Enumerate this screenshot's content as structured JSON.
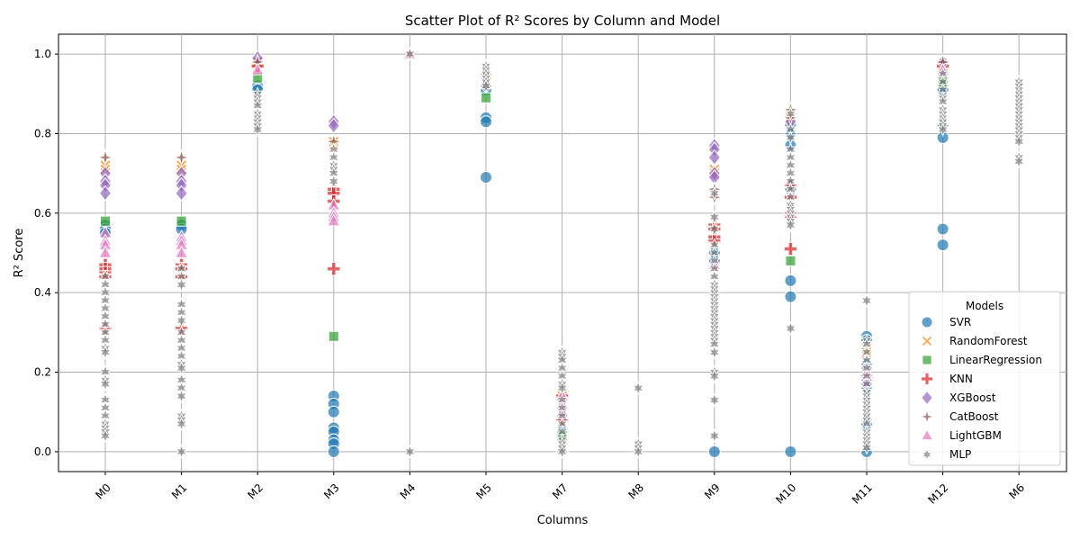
{
  "chart_data": {
    "type": "scatter",
    "title": "Scatter Plot of R² Scores by Column and Model",
    "xlabel": "Columns",
    "ylabel": "R² Score",
    "categories": [
      "M0",
      "M1",
      "M2",
      "M3",
      "M4",
      "M5",
      "M7",
      "M8",
      "M9",
      "M10",
      "M11",
      "M12",
      "M6"
    ],
    "yticks": [
      "0.0",
      "0.2",
      "0.4",
      "0.6",
      "0.8",
      "1.0"
    ],
    "ylim": [
      -0.05,
      1.05
    ],
    "grid": true,
    "legend": {
      "title": "Models",
      "placement": "bottom-right"
    },
    "series": [
      {
        "name": "SVR",
        "color": "#1f77b4",
        "marker": "circle",
        "points": {
          "M0": [
            0.57,
            0.56,
            0.55
          ],
          "M1": [
            0.57,
            0.56
          ],
          "M2": [
            0.92,
            0.91
          ],
          "M3": [
            0.14,
            0.12,
            0.1,
            0.06,
            0.05,
            0.03,
            0.02,
            0.0
          ],
          "M5": [
            0.84,
            0.83,
            0.69,
            0.91
          ],
          "M7": [
            0.09,
            0.05
          ],
          "M9": [
            0.5,
            0.48,
            0.0
          ],
          "M10": [
            0.82,
            0.8,
            0.77,
            0.66,
            0.43,
            0.39,
            0.0
          ],
          "M11": [
            0.29,
            0.28,
            0.22,
            0.16,
            0.08,
            0.07,
            0.0
          ],
          "M12": [
            0.92,
            0.91,
            0.82,
            0.79,
            0.56,
            0.52
          ]
        }
      },
      {
        "name": "RandomForest",
        "color": "#ff7f0e",
        "marker": "x",
        "points": {
          "M0": [
            0.72,
            0.71
          ],
          "M1": [
            0.72,
            0.71
          ],
          "M2": [
            0.98
          ],
          "M3": [
            0.78,
            0.77
          ],
          "M5": [
            0.93
          ],
          "M7": [
            0.14
          ],
          "M9": [
            0.71,
            0.7
          ],
          "M10": [
            0.84
          ],
          "M11": [
            0.26,
            0.25
          ],
          "M12": [
            0.97
          ]
        }
      },
      {
        "name": "LinearRegression",
        "color": "#2ca02c",
        "marker": "square",
        "points": {
          "M0": [
            0.58
          ],
          "M1": [
            0.58
          ],
          "M2": [
            0.94
          ],
          "M3": [
            0.29
          ],
          "M5": [
            0.89
          ],
          "M7": [
            0.04
          ],
          "M10": [
            0.48
          ],
          "M12": [
            0.93
          ]
        }
      },
      {
        "name": "KNN",
        "color": "#d62728",
        "marker": "plus",
        "points": {
          "M0": [
            0.47,
            0.46,
            0.45,
            0.44,
            0.31
          ],
          "M1": [
            0.47,
            0.46,
            0.44,
            0.31
          ],
          "M2": [
            0.97
          ],
          "M3": [
            0.66,
            0.65,
            0.63,
            0.46
          ],
          "M7": [
            0.14,
            0.08
          ],
          "M9": [
            0.57,
            0.56,
            0.54,
            0.53
          ],
          "M10": [
            0.67,
            0.64,
            0.6,
            0.59,
            0.51
          ],
          "M11": [
            0.19
          ],
          "M12": [
            0.97
          ]
        }
      },
      {
        "name": "XGBoost",
        "color": "#9467bd",
        "marker": "diamond",
        "points": {
          "M0": [
            0.7,
            0.68,
            0.67,
            0.65
          ],
          "M1": [
            0.7,
            0.68,
            0.67,
            0.65
          ],
          "M2": [
            0.99
          ],
          "M3": [
            0.83,
            0.82
          ],
          "M5": [
            0.92
          ],
          "M9": [
            0.77,
            0.76,
            0.74,
            0.7,
            0.69
          ],
          "M10": [
            0.83
          ],
          "M11": [
            0.21,
            0.19,
            0.18,
            0.17
          ],
          "M12": [
            0.98
          ]
        }
      },
      {
        "name": "CatBoost",
        "color": "#8c564b",
        "marker": "star4",
        "points": {
          "M0": [
            0.74
          ],
          "M1": [
            0.74
          ],
          "M2": [
            0.98
          ],
          "M3": [
            0.78
          ],
          "M5": [
            0.95
          ],
          "M9": [
            0.66,
            0.64
          ],
          "M10": [
            0.86,
            0.84
          ],
          "M12": [
            0.98
          ]
        }
      },
      {
        "name": "LightGBM",
        "color": "#e377c2",
        "marker": "triangle",
        "points": {
          "M0": [
            0.55,
            0.53,
            0.52,
            0.5
          ],
          "M1": [
            0.54,
            0.53,
            0.52,
            0.5
          ],
          "M2": [
            0.96
          ],
          "M3": [
            0.62,
            0.6,
            0.59,
            0.58
          ],
          "M4": [
            1.0
          ],
          "M7": [
            0.14,
            0.12,
            0.1,
            0.01
          ],
          "M9": [
            0.47
          ],
          "M11": [
            0.2
          ],
          "M12": [
            0.96
          ]
        }
      },
      {
        "name": "MLP",
        "color": "#7f7f7f",
        "marker": "star6",
        "points": {
          "M0": [
            0.44,
            0.42,
            0.4,
            0.38,
            0.36,
            0.34,
            0.32,
            0.3,
            0.28,
            0.26,
            0.25,
            0.2,
            0.18,
            0.17,
            0.13,
            0.11,
            0.09,
            0.07,
            0.06,
            0.05,
            0.04
          ],
          "M1": [
            0.46,
            0.44,
            0.42,
            0.37,
            0.35,
            0.33,
            0.3,
            0.28,
            0.26,
            0.24,
            0.22,
            0.21,
            0.18,
            0.16,
            0.14,
            0.09,
            0.08,
            0.07,
            0.0
          ],
          "M2": [
            0.9,
            0.89,
            0.88,
            0.87,
            0.85,
            0.84,
            0.83,
            0.82,
            0.81
          ],
          "M3": [
            0.76,
            0.74,
            0.72,
            0.71,
            0.7,
            0.68
          ],
          "M4": [
            1.0,
            0.0
          ],
          "M5": [
            0.97,
            0.96,
            0.95,
            0.94,
            0.93,
            0.92
          ],
          "M7": [
            0.25,
            0.24,
            0.23,
            0.21,
            0.19,
            0.17,
            0.16,
            0.13,
            0.11,
            0.09,
            0.07,
            0.05,
            0.03,
            0.02,
            0.01,
            0.0
          ],
          "M8": [
            0.16,
            0.02,
            0.01,
            0.0
          ],
          "M9": [
            0.65,
            0.59,
            0.56,
            0.52,
            0.5,
            0.48,
            0.46,
            0.44,
            0.42,
            0.41,
            0.4,
            0.39,
            0.38,
            0.37,
            0.36,
            0.35,
            0.34,
            0.33,
            0.32,
            0.31,
            0.3,
            0.29,
            0.28,
            0.27,
            0.25,
            0.2,
            0.19,
            0.13,
            0.04
          ],
          "M10": [
            0.85,
            0.81,
            0.79,
            0.76,
            0.74,
            0.72,
            0.7,
            0.68,
            0.66,
            0.64,
            0.62,
            0.61,
            0.6,
            0.59,
            0.58,
            0.57,
            0.31
          ],
          "M11": [
            0.38,
            0.28,
            0.27,
            0.25,
            0.23,
            0.21,
            0.19,
            0.17,
            0.15,
            0.14,
            0.13,
            0.12,
            0.11,
            0.1,
            0.09,
            0.08,
            0.07,
            0.05,
            0.04,
            0.03,
            0.02,
            0.01
          ],
          "M12": [
            0.95,
            0.93,
            0.91,
            0.89,
            0.88,
            0.86,
            0.85,
            0.84,
            0.83,
            0.82,
            0.81
          ],
          "M6": [
            0.93,
            0.92,
            0.91,
            0.9,
            0.89,
            0.88,
            0.87,
            0.86,
            0.85,
            0.84,
            0.83,
            0.82,
            0.81,
            0.8,
            0.79,
            0.78,
            0.74,
            0.73
          ]
        }
      }
    ]
  }
}
